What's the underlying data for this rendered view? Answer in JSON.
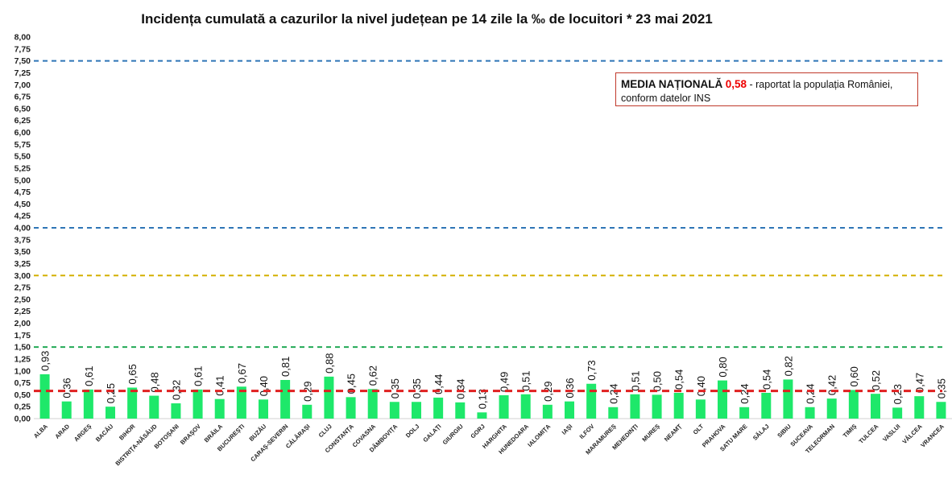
{
  "chart_data": {
    "type": "bar",
    "title": "Incidența cumulată a cazurilor la nivel județean pe 14 zile la ‰ de locuitori *  23 mai 2021",
    "categories": [
      "ALBA",
      "ARAD",
      "ARGEȘ",
      "BACĂU",
      "BIHOR",
      "BISTRIȚA-NĂSĂUD",
      "BOTOȘANI",
      "BRAȘOV",
      "BRĂILA",
      "BUCUREȘTI",
      "BUZĂU",
      "CARAȘ-SEVERIN",
      "CĂLĂRAȘI",
      "CLUJ",
      "CONSTANȚA",
      "COVASNA",
      "DÂMBOVIȚA",
      "DOLJ",
      "GALAȚI",
      "GIURGIU",
      "GORJ",
      "HARGHITA",
      "HUNEDOARA",
      "IALOMIȚA",
      "IAȘI",
      "ILFOV",
      "MARAMUREȘ",
      "MEHEDINȚI",
      "MUREȘ",
      "NEAMȚ",
      "OLT",
      "PRAHOVA",
      "SATU MARE",
      "SĂLAJ",
      "SIBIU",
      "SUCEAVA",
      "TELEORMAN",
      "TIMIȘ",
      "TULCEA",
      "VASLUI",
      "VÂLCEA",
      "VRANCEA"
    ],
    "values": [
      0.93,
      0.36,
      0.61,
      0.25,
      0.65,
      0.48,
      0.32,
      0.61,
      0.41,
      0.67,
      0.4,
      0.81,
      0.29,
      0.88,
      0.45,
      0.62,
      0.35,
      0.35,
      0.44,
      0.34,
      0.13,
      0.49,
      0.51,
      0.29,
      0.36,
      0.73,
      0.24,
      0.51,
      0.5,
      0.54,
      0.4,
      0.8,
      0.24,
      0.54,
      0.82,
      0.24,
      0.42,
      0.6,
      0.52,
      0.23,
      0.47,
      0.35
    ],
    "ylim": [
      0,
      8
    ],
    "ytick_step": 0.25,
    "decimal_separator": ",",
    "bar_color": "#1ee86a",
    "grid": false,
    "reference_lines": [
      {
        "value": 7.5,
        "color": "#2e75b6"
      },
      {
        "value": 4.0,
        "color": "#2e75b6"
      },
      {
        "value": 3.0,
        "color": "#d4b000"
      },
      {
        "value": 1.5,
        "color": "#22aa55"
      },
      {
        "value": 0.58,
        "color": "#e02020"
      }
    ],
    "annotation": {
      "label": "MEDIA NAȚIONALĂ",
      "value": "0,58",
      "text": "- raportat la populația României,",
      "text2": "conform datelor INS"
    }
  }
}
